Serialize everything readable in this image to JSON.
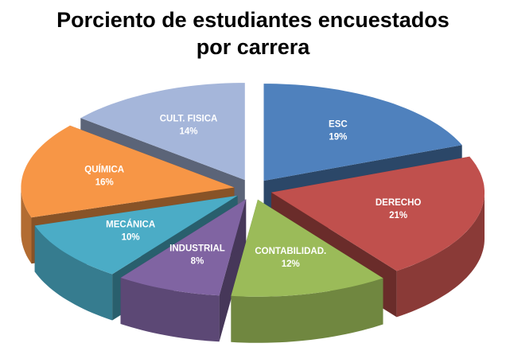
{
  "chart_data": {
    "type": "pie3d",
    "title": "Porciento de estudiantes encuestados por carrera",
    "categories": [
      "ESC",
      "DERECHO",
      "CONTABILIDAD.",
      "INDUSTRIAL",
      "MECÁNICA",
      "QUÍMICA",
      "CULT. FISICA"
    ],
    "values": [
      19,
      21,
      12,
      8,
      10,
      16,
      14
    ],
    "value_labels": [
      "19%",
      "21%",
      "12%",
      "8%",
      "10%",
      "16%",
      "14%"
    ],
    "colors": [
      "#4f81bd",
      "#c0504d",
      "#9bbb59",
      "#8064a2",
      "#4bacc6",
      "#f79646",
      "#a5b6da"
    ]
  }
}
